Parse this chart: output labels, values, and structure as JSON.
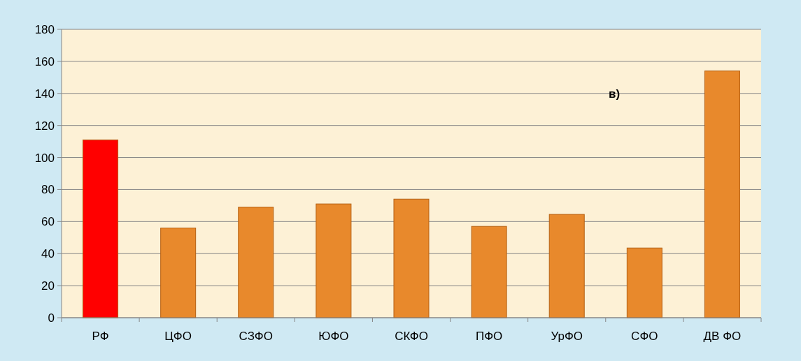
{
  "chart_data": {
    "type": "bar",
    "categories": [
      "РФ",
      "ЦФО",
      "СЗФО",
      "ЮФО",
      "СКФО",
      "ПФО",
      "УрФО",
      "СФО",
      "ДВ ФО"
    ],
    "values": [
      111,
      56,
      69,
      71,
      74,
      57,
      64.5,
      43.5,
      154
    ],
    "colors": [
      "#ff0000",
      "#e8892c",
      "#e8892c",
      "#e8892c",
      "#e8892c",
      "#e8892c",
      "#e8892c",
      "#e8892c",
      "#e8892c"
    ],
    "ylim": [
      0,
      180
    ],
    "yticks": [
      0,
      20,
      40,
      60,
      80,
      100,
      120,
      140,
      160,
      180
    ],
    "grid": "y",
    "annotations": [
      "в)"
    ]
  }
}
